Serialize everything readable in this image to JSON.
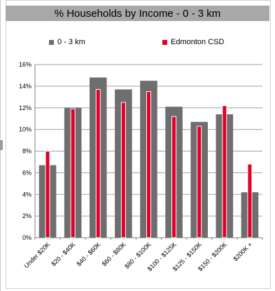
{
  "chart_data": {
    "type": "bar",
    "title": "% Households by Income - 0 - 3 km",
    "xlabel": "",
    "ylabel": "",
    "categories": [
      "Under $20K",
      "$20 - $40K",
      "$40 - $60K",
      "$60 - $80K",
      "$80 - $100K",
      "$100 - $125K",
      "$125 - $150K",
      "$150 - $200K",
      "$200K +"
    ],
    "series": [
      {
        "name": "0 - 3 km",
        "color": "#6e6e6e",
        "values": [
          6.7,
          12.0,
          14.8,
          13.7,
          14.5,
          12.1,
          10.7,
          11.4,
          4.2
        ]
      },
      {
        "name": "Edmonton CSD",
        "color": "#e0002a",
        "values": [
          8.0,
          11.9,
          13.7,
          12.5,
          13.5,
          11.2,
          10.3,
          12.2,
          6.8
        ]
      }
    ],
    "ylim": [
      0,
      16
    ],
    "yticks": [
      "0%",
      "2%",
      "4%",
      "6%",
      "8%",
      "10%",
      "12%",
      "14%",
      "16%"
    ],
    "ytick_values": [
      0,
      2,
      4,
      6,
      8,
      10,
      12,
      14,
      16
    ],
    "grid": true,
    "legend_position": "top"
  }
}
